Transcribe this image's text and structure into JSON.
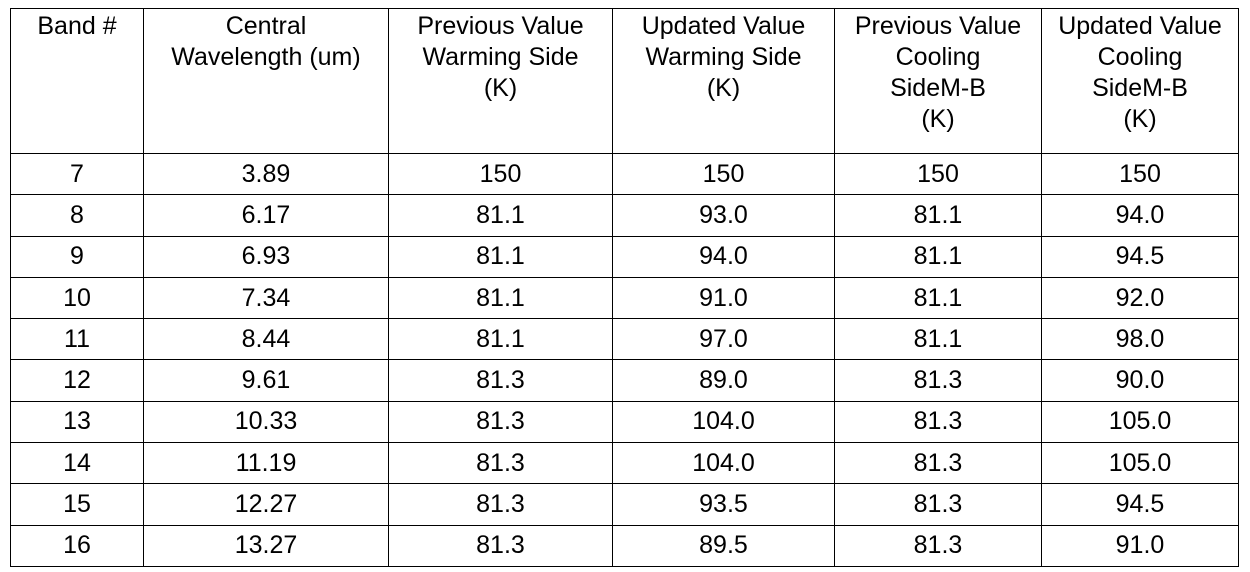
{
  "table": {
    "header": [
      "Band #",
      "Central\nWavelength (um)",
      "Previous Value\nWarming Side\n(K)",
      "Updated Value\nWarming Side\n(K)",
      "Previous Value\nCooling\nSideM-B\n(K)",
      "Updated Value\nCooling\nSideM-B\n(K)"
    ],
    "rows": [
      [
        "7",
        "3.89",
        "150",
        "150",
        "150",
        "150"
      ],
      [
        "8",
        "6.17",
        "81.1",
        "93.0",
        "81.1",
        "94.0"
      ],
      [
        "9",
        "6.93",
        "81.1",
        "94.0",
        "81.1",
        "94.5"
      ],
      [
        "10",
        "7.34",
        "81.1",
        "91.0",
        "81.1",
        "92.0"
      ],
      [
        "11",
        "8.44",
        "81.1",
        "97.0",
        "81.1",
        "98.0"
      ],
      [
        "12",
        "9.61",
        "81.3",
        "89.0",
        "81.3",
        "90.0"
      ],
      [
        "13",
        "10.33",
        "81.3",
        "104.0",
        "81.3",
        "105.0"
      ],
      [
        "14",
        "11.19",
        "81.3",
        "104.0",
        "81.3",
        "105.0"
      ],
      [
        "15",
        "12.27",
        "81.3",
        "93.5",
        "81.3",
        "94.5"
      ],
      [
        "16",
        "13.27",
        "81.3",
        "89.5",
        "81.3",
        "91.0"
      ]
    ]
  }
}
